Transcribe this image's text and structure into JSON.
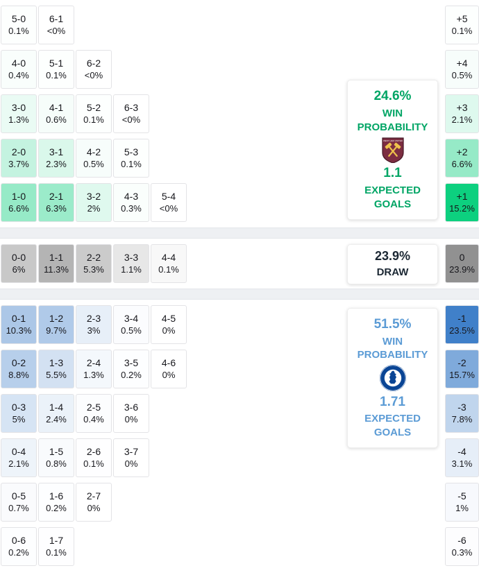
{
  "chart_data": {
    "type": "heatmap",
    "description": "Correct-score probability matrix with win/draw probabilities, goal-difference column and expected goals",
    "sections": [
      {
        "id": "home-win",
        "accent": "#00a565",
        "shade": {
          "color": "#00cd78",
          "max": 16,
          "curve": 1
        },
        "panel": {
          "probability": "24.6%",
          "label_line1": "WIN",
          "label_line2": "PROBABILITY",
          "badge": "west-ham-united-badge",
          "goals": "1.1",
          "goals_label_line1": "EXPECTED",
          "goals_label_line2": "GOALS"
        },
        "rows": [
          {
            "cells": [
              {
                "score": "5-0",
                "pct": "0.1%",
                "v": 0.1
              },
              {
                "score": "6-1",
                "pct": "<0%",
                "v": 0
              }
            ],
            "diff": {
              "score": "+5",
              "pct": "0.1%",
              "v": 0.1
            }
          },
          {
            "cells": [
              {
                "score": "4-0",
                "pct": "0.4%",
                "v": 0.4
              },
              {
                "score": "5-1",
                "pct": "0.1%",
                "v": 0.1
              },
              {
                "score": "6-2",
                "pct": "<0%",
                "v": 0
              }
            ],
            "diff": {
              "score": "+4",
              "pct": "0.5%",
              "v": 0.5
            }
          },
          {
            "cells": [
              {
                "score": "3-0",
                "pct": "1.3%",
                "v": 1.3
              },
              {
                "score": "4-1",
                "pct": "0.6%",
                "v": 0.6
              },
              {
                "score": "5-2",
                "pct": "0.1%",
                "v": 0.1
              },
              {
                "score": "6-3",
                "pct": "<0%",
                "v": 0
              }
            ],
            "diff": {
              "score": "+3",
              "pct": "2.1%",
              "v": 2.1
            }
          },
          {
            "cells": [
              {
                "score": "2-0",
                "pct": "3.7%",
                "v": 3.7
              },
              {
                "score": "3-1",
                "pct": "2.3%",
                "v": 2.3
              },
              {
                "score": "4-2",
                "pct": "0.5%",
                "v": 0.5
              },
              {
                "score": "5-3",
                "pct": "0.1%",
                "v": 0.1
              }
            ],
            "diff": {
              "score": "+2",
              "pct": "6.6%",
              "v": 6.6
            }
          },
          {
            "cells": [
              {
                "score": "1-0",
                "pct": "6.6%",
                "v": 6.6
              },
              {
                "score": "2-1",
                "pct": "6.3%",
                "v": 6.3
              },
              {
                "score": "3-2",
                "pct": "2%",
                "v": 2
              },
              {
                "score": "4-3",
                "pct": "0.3%",
                "v": 0.3
              },
              {
                "score": "5-4",
                "pct": "<0%",
                "v": 0
              }
            ],
            "diff": {
              "score": "+1",
              "pct": "15.2%",
              "v": 15.2
            }
          }
        ]
      },
      {
        "id": "draw",
        "accent": "#1b2733",
        "shade": {
          "color": "#919191",
          "max": 24,
          "curve": 0.5
        },
        "panel": {
          "probability": "23.9%",
          "label_line1": "DRAW"
        },
        "rows": [
          {
            "cells": [
              {
                "score": "0-0",
                "pct": "6%",
                "v": 6
              },
              {
                "score": "1-1",
                "pct": "11.3%",
                "v": 11.3
              },
              {
                "score": "2-2",
                "pct": "5.3%",
                "v": 5.3
              },
              {
                "score": "3-3",
                "pct": "1.1%",
                "v": 1.1
              },
              {
                "score": "4-4",
                "pct": "0.1%",
                "v": 0.1
              }
            ],
            "diff": {
              "score": "0",
              "pct": "23.9%",
              "v": 23.9
            }
          }
        ]
      },
      {
        "id": "away-win",
        "accent": "#5b9bd5",
        "shade": {
          "color": "#3c7dc8",
          "max": 24,
          "curve": 1
        },
        "panel": {
          "probability": "51.5%",
          "label_line1": "WIN",
          "label_line2": "PROBABILITY",
          "badge": "chelsea-fc-badge",
          "goals": "1.71",
          "goals_label_line1": "EXPECTED",
          "goals_label_line2": "GOALS"
        },
        "rows": [
          {
            "cells": [
              {
                "score": "0-1",
                "pct": "10.3%",
                "v": 10.3
              },
              {
                "score": "1-2",
                "pct": "9.7%",
                "v": 9.7
              },
              {
                "score": "2-3",
                "pct": "3%",
                "v": 3
              },
              {
                "score": "3-4",
                "pct": "0.5%",
                "v": 0.5
              },
              {
                "score": "4-5",
                "pct": "0%",
                "v": 0
              }
            ],
            "diff": {
              "score": "-1",
              "pct": "23.5%",
              "v": 23.5
            }
          },
          {
            "cells": [
              {
                "score": "0-2",
                "pct": "8.8%",
                "v": 8.8
              },
              {
                "score": "1-3",
                "pct": "5.5%",
                "v": 5.5
              },
              {
                "score": "2-4",
                "pct": "1.3%",
                "v": 1.3
              },
              {
                "score": "3-5",
                "pct": "0.2%",
                "v": 0.2
              },
              {
                "score": "4-6",
                "pct": "0%",
                "v": 0
              }
            ],
            "diff": {
              "score": "-2",
              "pct": "15.7%",
              "v": 15.7
            }
          },
          {
            "cells": [
              {
                "score": "0-3",
                "pct": "5%",
                "v": 5
              },
              {
                "score": "1-4",
                "pct": "2.4%",
                "v": 2.4
              },
              {
                "score": "2-5",
                "pct": "0.4%",
                "v": 0.4
              },
              {
                "score": "3-6",
                "pct": "0%",
                "v": 0
              }
            ],
            "diff": {
              "score": "-3",
              "pct": "7.8%",
              "v": 7.8
            }
          },
          {
            "cells": [
              {
                "score": "0-4",
                "pct": "2.1%",
                "v": 2.1
              },
              {
                "score": "1-5",
                "pct": "0.8%",
                "v": 0.8
              },
              {
                "score": "2-6",
                "pct": "0.1%",
                "v": 0.1
              },
              {
                "score": "3-7",
                "pct": "0%",
                "v": 0
              }
            ],
            "diff": {
              "score": "-4",
              "pct": "3.1%",
              "v": 3.1
            }
          },
          {
            "cells": [
              {
                "score": "0-5",
                "pct": "0.7%",
                "v": 0.7
              },
              {
                "score": "1-6",
                "pct": "0.2%",
                "v": 0.2
              },
              {
                "score": "2-7",
                "pct": "0%",
                "v": 0
              }
            ],
            "diff": {
              "score": "-5",
              "pct": "1%",
              "v": 1
            }
          },
          {
            "cells": [
              {
                "score": "0-6",
                "pct": "0.2%",
                "v": 0.2
              },
              {
                "score": "1-7",
                "pct": "0.1%",
                "v": 0.1
              }
            ],
            "diff": {
              "score": "-6",
              "pct": "0.3%",
              "v": 0.3
            }
          }
        ]
      }
    ]
  }
}
